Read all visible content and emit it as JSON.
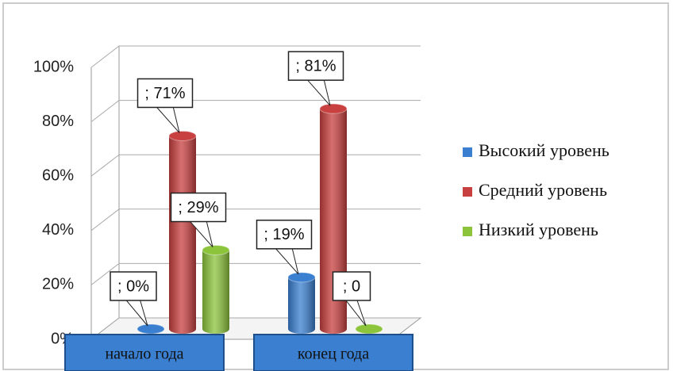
{
  "chart_data": {
    "type": "bar3d",
    "categories": [
      "начало года",
      "конец года"
    ],
    "series": [
      {
        "name": "Высокий уровень",
        "color": "#3a7fd0",
        "values": [
          0,
          19
        ],
        "value_labels": [
          "; 0%",
          "; 19%"
        ]
      },
      {
        "name": "Средний уровень",
        "color": "#c8403f",
        "values": [
          71,
          81
        ],
        "value_labels": [
          "; 71%",
          "; 81%"
        ]
      },
      {
        "name": "Низкий уровень",
        "color": "#8cc43c",
        "values": [
          29,
          0
        ],
        "value_labels": [
          "; 29%",
          "; 0"
        ]
      }
    ],
    "ylim": [
      0,
      100
    ],
    "yticks": [
      {
        "value": 0,
        "label": "0%"
      },
      {
        "value": 20,
        "label": "20%"
      },
      {
        "value": 40,
        "label": "40%"
      },
      {
        "value": 60,
        "label": "60%"
      },
      {
        "value": 80,
        "label": "80%"
      },
      {
        "value": 100,
        "label": "100%"
      }
    ],
    "grid": true,
    "legend": "right"
  }
}
